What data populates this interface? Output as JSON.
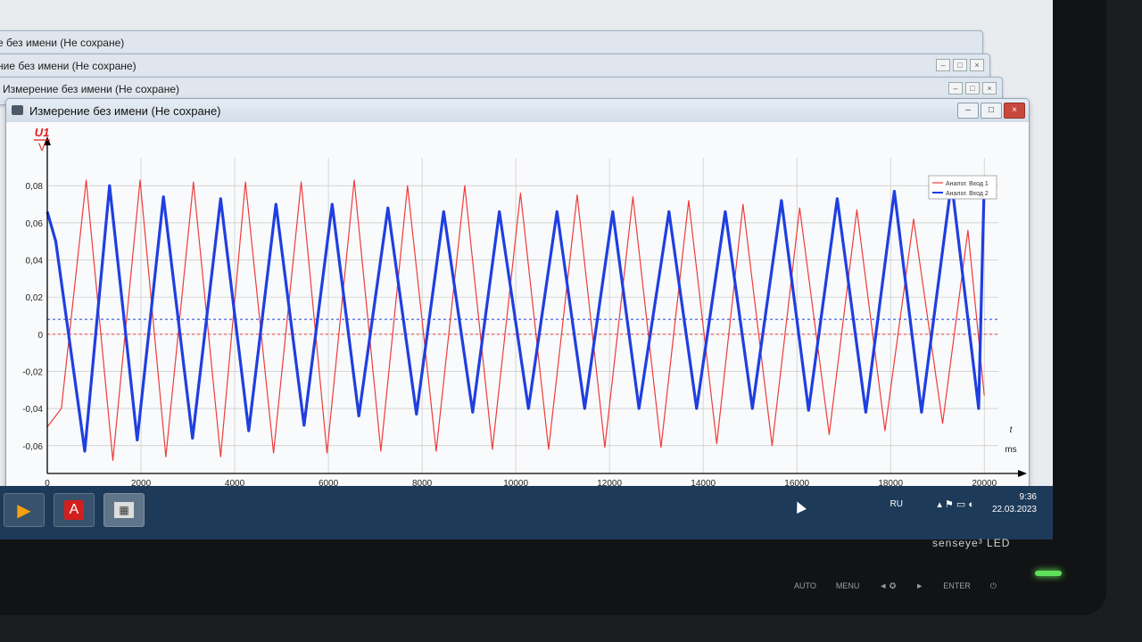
{
  "window": {
    "title": "Измерение без имени (Не сохране)",
    "background_titles": [
      "е без имени (Не сохране)",
      "ние без имени (Не сохране)",
      "Измерение без имени (Не сохране)"
    ]
  },
  "taskbar": {
    "lang": "RU",
    "time": "9:36",
    "date": "22.03.2023"
  },
  "monitor": {
    "brand": "senseye³ LED",
    "buttons": [
      "AUTO",
      "MENU",
      "◄ ✪",
      "►",
      "ENTER",
      "⏻"
    ]
  },
  "colors": {
    "series1": "#ef3b3b",
    "series2": "#1f3fe0",
    "axis": "#000000",
    "grid": "#c8c8c8"
  },
  "chart_data": {
    "type": "line",
    "ylabel_top": "U1",
    "ylabel_unit": "V",
    "xlabel_top": "t",
    "xlabel_unit": "ms",
    "xlim": [
      0,
      20300
    ],
    "ylim": [
      -0.075,
      0.095
    ],
    "x_ticks": [
      {
        "value": 0,
        "label": "0"
      },
      {
        "value": 2000,
        "label": "2000"
      },
      {
        "value": 4000,
        "label": "4000"
      },
      {
        "value": 6000,
        "label": "6000"
      },
      {
        "value": 8000,
        "label": "8000"
      },
      {
        "value": 10000,
        "label": "10000"
      },
      {
        "value": 12000,
        "label": "12000"
      },
      {
        "value": 14000,
        "label": "14000"
      },
      {
        "value": 16000,
        "label": "16000"
      },
      {
        "value": 18000,
        "label": "18000"
      },
      {
        "value": 20000,
        "label": "20000"
      }
    ],
    "y_ticks": [
      {
        "value": 0.08,
        "label": "0,08"
      },
      {
        "value": 0.06,
        "label": "0,06"
      },
      {
        "value": 0.04,
        "label": "0,04"
      },
      {
        "value": 0.02,
        "label": "0,02"
      },
      {
        "value": 0,
        "label": "0"
      },
      {
        "value": -0.02,
        "label": "-0,02"
      },
      {
        "value": -0.04,
        "label": "-0,04"
      },
      {
        "value": -0.06,
        "label": "-0,06"
      }
    ],
    "grid": true,
    "legend_position": "top-right",
    "series": [
      {
        "name": "Аналог. Вход 1",
        "color": "#ef3b3b",
        "width": 1.2,
        "mean_line": 0.0,
        "x": [
          0,
          300,
          830,
          1400,
          1980,
          2530,
          3120,
          3700,
          4230,
          4830,
          5420,
          5970,
          6550,
          7120,
          7690,
          8300,
          8910,
          9500,
          10100,
          10700,
          11310,
          11900,
          12500,
          13100,
          13690,
          14290,
          14850,
          15470,
          16060,
          16690,
          17280,
          17880,
          18490,
          19110,
          19650,
          20000
        ],
        "y": [
          -0.05,
          -0.04,
          0.083,
          -0.068,
          0.083,
          -0.066,
          0.082,
          -0.066,
          0.082,
          -0.064,
          0.082,
          -0.064,
          0.083,
          -0.063,
          0.08,
          -0.063,
          0.08,
          -0.062,
          0.076,
          -0.062,
          0.075,
          -0.061,
          0.074,
          -0.061,
          0.072,
          -0.059,
          0.07,
          -0.06,
          0.068,
          -0.054,
          0.067,
          -0.052,
          0.062,
          -0.048,
          0.056,
          -0.033
        ]
      },
      {
        "name": "Аналог. Вход 2",
        "color": "#1f3fe0",
        "width": 3.2,
        "mean_line": 0.008,
        "x": [
          0,
          180,
          800,
          1330,
          1920,
          2480,
          3100,
          3700,
          4300,
          4880,
          5480,
          6080,
          6650,
          7270,
          7880,
          8460,
          9080,
          9650,
          10270,
          10880,
          11470,
          12070,
          12630,
          13270,
          13860,
          14470,
          15050,
          15670,
          16250,
          16860,
          17470,
          18080,
          18660,
          19300,
          19880,
          20000
        ],
        "y": [
          0.066,
          0.05,
          -0.063,
          0.08,
          -0.057,
          0.074,
          -0.056,
          0.073,
          -0.052,
          0.07,
          -0.049,
          0.07,
          -0.044,
          0.068,
          -0.043,
          0.066,
          -0.042,
          0.066,
          -0.04,
          0.066,
          -0.04,
          0.066,
          -0.04,
          0.066,
          -0.04,
          0.066,
          -0.04,
          0.072,
          -0.041,
          0.073,
          -0.042,
          0.077,
          -0.042,
          0.082,
          -0.04,
          0.082
        ]
      }
    ]
  }
}
